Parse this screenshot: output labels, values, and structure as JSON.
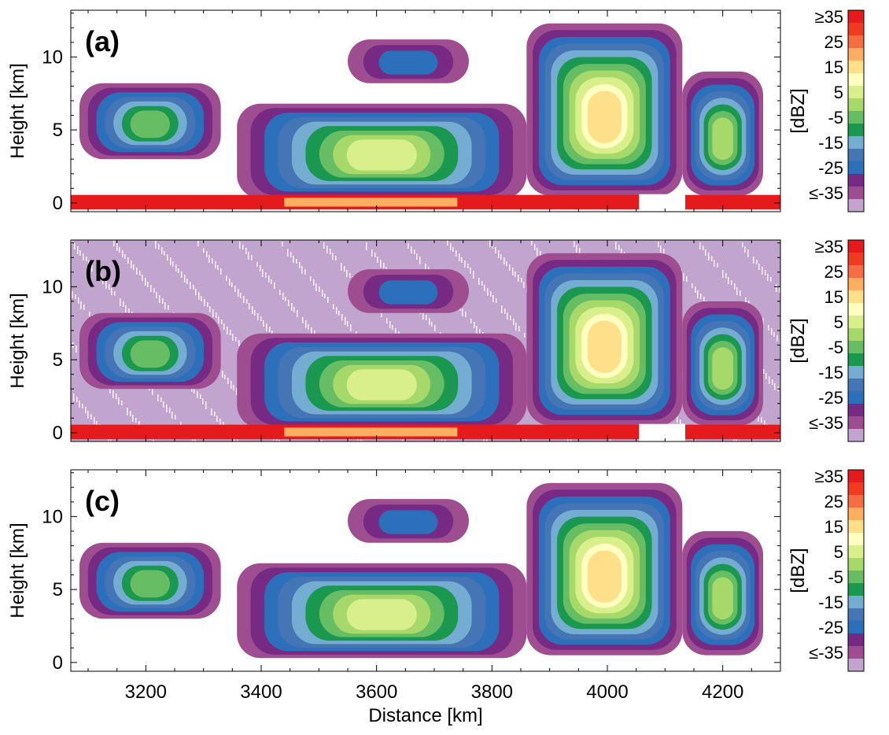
{
  "colorbar": {
    "unit_label": "[dBZ]",
    "tick_labels": [
      "≥35",
      "25",
      "15",
      "5",
      "-5",
      "-15",
      "-25",
      "≤-35"
    ],
    "colors": [
      "#e41a1c",
      "#f03b20",
      "#f46d43",
      "#fdae61",
      "#fee08b",
      "#ffffbf",
      "#d9ef8b",
      "#a6d96a",
      "#66bd63",
      "#1a9850",
      "#74add1",
      "#4575b4",
      "#2c6fbb",
      "#762a83",
      "#9e4d91",
      "#c2a5cf"
    ]
  },
  "chart_data": [
    {
      "type": "heatmap",
      "panel_label": "(a)",
      "ylabel": "Height [km]",
      "xlabel": "",
      "xlim": [
        3070,
        4300
      ],
      "ylim": [
        -0.6,
        13.2
      ],
      "yticks": [
        0,
        5,
        10
      ],
      "show_x_tick_labels": false,
      "cloud_regions": [
        {
          "x_start": 3085,
          "x_end": 3330,
          "base_km": 3.0,
          "top_km": 8.2,
          "peak_dbz": -5
        },
        {
          "x_start": 3358,
          "x_end": 3860,
          "base_km": 0.3,
          "top_km": 6.8,
          "peak_dbz": 5
        },
        {
          "x_start": 3860,
          "x_end": 4130,
          "base_km": 0.5,
          "top_km": 12.3,
          "peak_dbz": 15
        },
        {
          "x_start": 4130,
          "x_end": 4270,
          "base_km": 0.5,
          "top_km": 9.0,
          "peak_dbz": 0
        },
        {
          "x_start": 3550,
          "x_end": 3760,
          "base_km": 8.2,
          "top_km": 11.2,
          "peak_dbz": -25
        }
      ],
      "surface_clutter": true,
      "background_noise": false
    },
    {
      "type": "heatmap",
      "panel_label": "(b)",
      "ylabel": "Height [km]",
      "xlabel": "",
      "xlim": [
        3070,
        4300
      ],
      "ylim": [
        -0.6,
        13.2
      ],
      "yticks": [
        0,
        5,
        10
      ],
      "show_x_tick_labels": false,
      "cloud_regions": [
        {
          "x_start": 3085,
          "x_end": 3330,
          "base_km": 3.0,
          "top_km": 8.2,
          "peak_dbz": -5
        },
        {
          "x_start": 3358,
          "x_end": 3860,
          "base_km": 0.3,
          "top_km": 6.8,
          "peak_dbz": 5
        },
        {
          "x_start": 3860,
          "x_end": 4130,
          "base_km": 0.5,
          "top_km": 12.3,
          "peak_dbz": 15
        },
        {
          "x_start": 4130,
          "x_end": 4270,
          "base_km": 0.5,
          "top_km": 9.0,
          "peak_dbz": 0
        },
        {
          "x_start": 3550,
          "x_end": 3760,
          "base_km": 8.2,
          "top_km": 11.2,
          "peak_dbz": -25
        }
      ],
      "surface_clutter": true,
      "background_noise": true
    },
    {
      "type": "heatmap",
      "panel_label": "(c)",
      "ylabel": "Height [km]",
      "xlabel": "Distance [km]",
      "xlim": [
        3070,
        4300
      ],
      "ylim": [
        -0.6,
        13.2
      ],
      "yticks": [
        0,
        5,
        10
      ],
      "xticks": [
        3200,
        3400,
        3600,
        3800,
        4000,
        4200
      ],
      "show_x_tick_labels": true,
      "cloud_regions": [
        {
          "x_start": 3085,
          "x_end": 3330,
          "base_km": 3.0,
          "top_km": 8.2,
          "peak_dbz": -5
        },
        {
          "x_start": 3358,
          "x_end": 3860,
          "base_km": 0.3,
          "top_km": 6.8,
          "peak_dbz": 5
        },
        {
          "x_start": 3860,
          "x_end": 4130,
          "base_km": 0.5,
          "top_km": 12.3,
          "peak_dbz": 15
        },
        {
          "x_start": 4130,
          "x_end": 4270,
          "base_km": 0.5,
          "top_km": 9.0,
          "peak_dbz": 0
        },
        {
          "x_start": 3550,
          "x_end": 3760,
          "base_km": 8.2,
          "top_km": 11.2,
          "peak_dbz": -25
        }
      ],
      "surface_clutter": false,
      "background_noise": false
    }
  ]
}
